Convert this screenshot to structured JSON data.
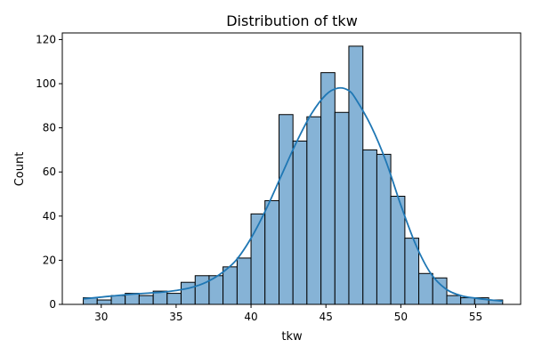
{
  "chart_data": {
    "type": "histogram",
    "title": "Distribution of tkw",
    "xlabel": "tkw",
    "ylabel": "Count",
    "xlim": [
      27.4,
      58.0
    ],
    "ylim": [
      0,
      123
    ],
    "x_ticks": [
      30,
      35,
      40,
      45,
      50,
      55
    ],
    "y_ticks": [
      0,
      20,
      40,
      60,
      80,
      100,
      120
    ],
    "bin_edges": [
      28.8,
      29.73,
      30.67,
      31.6,
      32.53,
      33.47,
      34.4,
      35.33,
      36.27,
      37.2,
      38.13,
      39.07,
      40.0,
      40.93,
      41.87,
      42.8,
      43.73,
      44.67,
      45.6,
      46.53,
      47.47,
      48.4,
      49.33,
      50.27,
      51.2,
      52.13,
      53.07,
      54.0,
      54.93,
      55.87,
      56.8
    ],
    "counts": [
      3,
      2,
      4,
      5,
      4,
      6,
      5,
      10,
      13,
      13,
      17,
      21,
      41,
      47,
      86,
      74,
      85,
      105,
      87,
      117,
      70,
      68,
      49,
      30,
      14,
      12,
      4,
      3,
      3,
      2
    ],
    "kde": {
      "x": [
        28.8,
        30,
        32,
        34,
        35,
        36,
        37,
        38,
        39,
        40,
        41,
        42,
        43,
        44,
        45,
        45.8,
        46.5,
        47,
        48,
        49,
        50,
        51,
        52,
        53,
        54,
        55,
        56,
        56.8
      ],
      "y": [
        2.5,
        3.3,
        4.6,
        5.5,
        6.3,
        7.6,
        10,
        14,
        20,
        30,
        43,
        58,
        73,
        86,
        95,
        98,
        97,
        93,
        81,
        65,
        45,
        27,
        14,
        7,
        4,
        2.8,
        2,
        1.5
      ]
    },
    "bar_color": "#86b3d6",
    "bar_edge_color": "#000000",
    "kde_color": "#1f77b4",
    "grid": false
  }
}
